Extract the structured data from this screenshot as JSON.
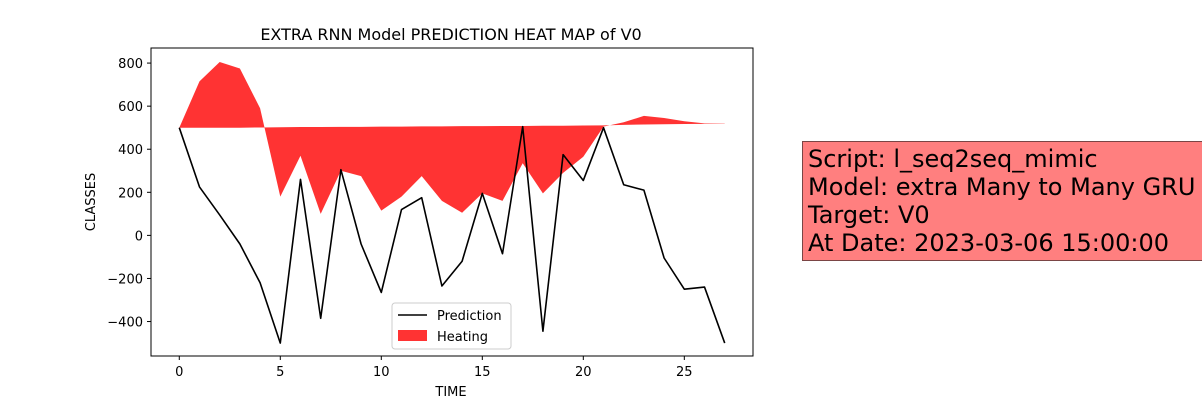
{
  "chart_data": {
    "type": "line",
    "title": "EXTRA RNN Model PREDICTION HEAT MAP of V0",
    "xlabel": "TIME",
    "ylabel": "CLASSES",
    "xlim": [
      -1.4,
      28.4
    ],
    "ylim": [
      -560,
      870
    ],
    "xticks": [
      0,
      5,
      10,
      15,
      20,
      25
    ],
    "yticks": [
      -400,
      -200,
      0,
      200,
      400,
      600,
      800
    ],
    "grid": false,
    "legend_position": "lower-center",
    "series": [
      {
        "name": "Prediction",
        "type": "line",
        "color": "#000000",
        "x": [
          0,
          1,
          2,
          3,
          4,
          5,
          6,
          7,
          8,
          9,
          10,
          11,
          12,
          13,
          14,
          15,
          16,
          17,
          18,
          19,
          20,
          21,
          22,
          23,
          24,
          25,
          26,
          27
        ],
        "y": [
          500,
          225,
          95,
          -40,
          -220,
          -500,
          260,
          -385,
          305,
          -40,
          -265,
          120,
          175,
          -235,
          -120,
          195,
          -85,
          505,
          -445,
          375,
          255,
          500,
          235,
          210,
          -105,
          -250,
          -240,
          -500
        ]
      },
      {
        "name": "Heating",
        "type": "area",
        "color": "#ff0000",
        "x": [
          0,
          1,
          2,
          3,
          4,
          5,
          6,
          7,
          8,
          9,
          10,
          11,
          12,
          13,
          14,
          15,
          16,
          17,
          18,
          19,
          20,
          21,
          22,
          23,
          24,
          25,
          26,
          27
        ],
        "y": [
          500,
          715,
          805,
          775,
          590,
          180,
          370,
          100,
          300,
          275,
          115,
          180,
          275,
          160,
          105,
          195,
          160,
          335,
          195,
          290,
          365,
          505,
          525,
          555,
          545,
          530,
          520,
          520
        ],
        "baseline": [
          500,
          500,
          500,
          500,
          501,
          502,
          503,
          503,
          504,
          504,
          505,
          505,
          506,
          506,
          507,
          507,
          508,
          508,
          509,
          509,
          510,
          511,
          513,
          515,
          516,
          517,
          518,
          519
        ]
      }
    ]
  },
  "info_box": {
    "line1": "Script: l_seq2seq_mimic",
    "line2": "Model: extra Many to Many GRU",
    "line3": "Target: V0",
    "line4": "At Date: 2023-03-06 15:00:00"
  }
}
